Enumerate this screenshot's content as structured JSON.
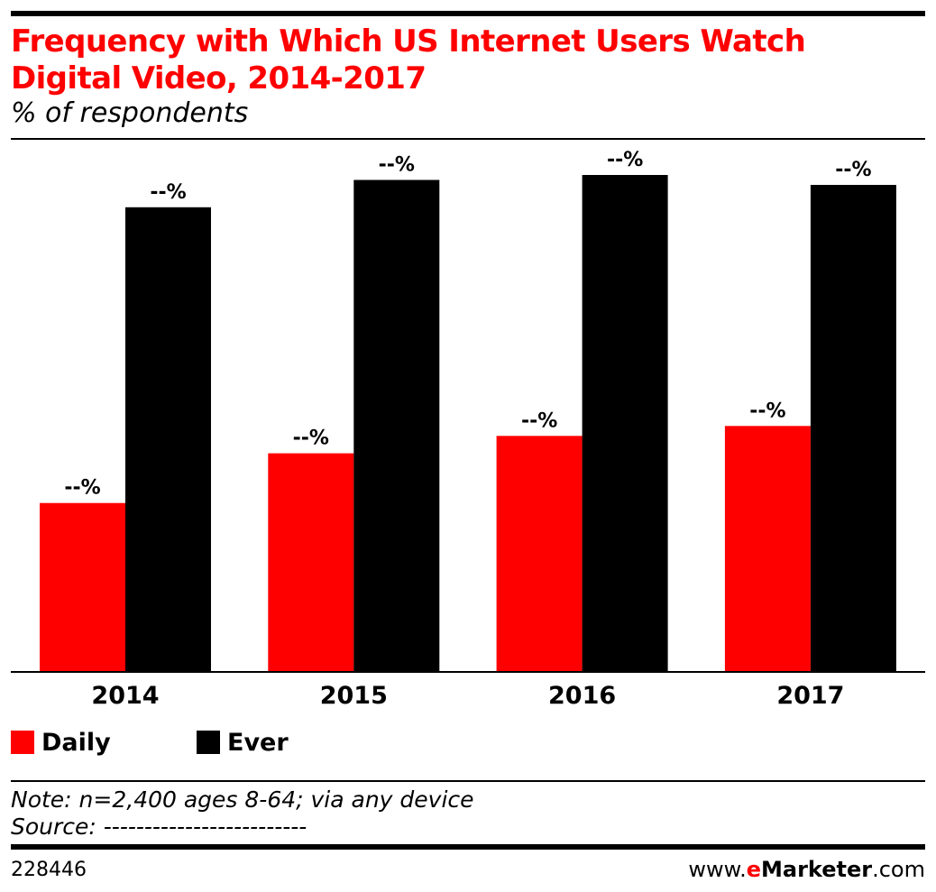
{
  "title": "Frequency with Which US Internet Users Watch Digital Video, 2014-2017",
  "subtitle": "% of respondents",
  "note": "Note: n=2,400 ages 8-64; via any device",
  "source": "Source: -------------------------",
  "chart_id": "228446",
  "brand": {
    "prefix": "www.",
    "e": "e",
    "name": "Marketer",
    "suffix": ".com"
  },
  "colors": {
    "daily": "#ff0000",
    "ever": "#000000",
    "accent": "#ff0000"
  },
  "chart_data": {
    "type": "bar",
    "title": "Frequency with Which US Internet Users Watch Digital Video, 2014-2017",
    "subtitle": "% of respondents",
    "categories": [
      "2014",
      "2015",
      "2016",
      "2017"
    ],
    "series": [
      {
        "name": "Daily",
        "values": [
          34,
          44,
          47.5,
          49.5
        ],
        "labels": [
          "--%",
          "--%",
          "--%",
          "--%"
        ]
      },
      {
        "name": "Ever",
        "values": [
          93.5,
          99,
          100,
          98
        ],
        "labels": [
          "--%",
          "--%",
          "--%",
          "--%"
        ]
      }
    ],
    "ylim": [
      0,
      100
    ],
    "grid": false,
    "legend": "bottom-left"
  }
}
